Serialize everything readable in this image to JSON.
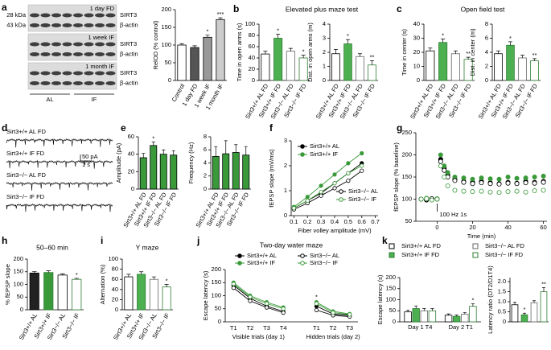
{
  "chart_data": [
    {
      "type": "blot",
      "panel": "a",
      "mw": [
        "28 kDa",
        "43 kDa"
      ],
      "bands": [
        "SIRT3",
        "β-actin"
      ],
      "periods": [
        "1 day FD",
        "1 week IF",
        "1 month IF"
      ],
      "groups": [
        "AL",
        "IF"
      ]
    },
    {
      "type": "bar",
      "ylabel": "RelOD (% control)",
      "categories": [
        "Control",
        "1 day FD",
        "1 week IF",
        "1 month IF"
      ],
      "values": [
        100,
        93,
        122,
        172
      ],
      "errors": [
        4,
        5,
        6,
        5
      ],
      "sig": [
        null,
        null,
        "*",
        "***"
      ],
      "colors": [
        "#ffffff",
        "#555555",
        "#999999",
        "#cccccc"
      ],
      "edge_colors": [
        "#000000",
        "#000000",
        "#000000",
        "#000000"
      ],
      "ylim": [
        0,
        200
      ],
      "yticks": [
        0,
        50,
        100,
        150,
        200
      ]
    },
    {
      "type": "bar",
      "panel": "b",
      "title": "Elevated plus maze test",
      "ylabel": "Time in open arms (s)",
      "categories": [
        "Sirt3+/+ AL FD",
        "Sirt3+/+ IF FD",
        "Sirt3−/− AL FD",
        "Sirt3−/− IF FD"
      ],
      "values": [
        47,
        75,
        52,
        40
      ],
      "errors": [
        5,
        7,
        5,
        5
      ],
      "sig": [
        null,
        "*",
        null,
        "*"
      ],
      "colors": [
        "#ffffff",
        "#4caf50",
        "#ffffff",
        "#ffffff"
      ],
      "edge_colors": [
        "#000000",
        "#2e7d32",
        "#666666",
        "#2e7d32"
      ],
      "ylim": [
        0,
        100
      ],
      "yticks": [
        0,
        20,
        40,
        60,
        80,
        100
      ]
    },
    {
      "type": "bar",
      "ylabel": "Dist. in open arms (m)",
      "categories": [
        "Sirt3+/+ AL FD",
        "Sirt3+/+ IF FD",
        "Sirt3−/− AL FD",
        "Sirt3−/− IF FD"
      ],
      "values": [
        1.9,
        2.6,
        1.7,
        1.1
      ],
      "errors": [
        0.3,
        0.3,
        0.2,
        0.3
      ],
      "sig": [
        null,
        "*",
        null,
        "**"
      ],
      "colors": [
        "#ffffff",
        "#4caf50",
        "#ffffff",
        "#ffffff"
      ],
      "edge_colors": [
        "#000000",
        "#2e7d32",
        "#666666",
        "#2e7d32"
      ],
      "ylim": [
        0,
        4
      ],
      "yticks": [
        0,
        1,
        2,
        3,
        4
      ]
    },
    {
      "type": "bar",
      "panel": "c",
      "title": "Open field test",
      "ylabel": "Time in center (s)",
      "categories": [
        "Sirt3+/+ AL FD",
        "Sirt3+/+ IF FD",
        "Sirt3−/− AL FD",
        "Sirt3−/− IF FD"
      ],
      "values": [
        21,
        27,
        19,
        15
      ],
      "errors": [
        2,
        2.5,
        2,
        1.5
      ],
      "sig": [
        null,
        "*",
        null,
        "**"
      ],
      "colors": [
        "#ffffff",
        "#4caf50",
        "#ffffff",
        "#ffffff"
      ],
      "edge_colors": [
        "#000000",
        "#2e7d32",
        "#666666",
        "#2e7d32"
      ],
      "ylim": [
        0,
        40
      ],
      "yticks": [
        0,
        10,
        20,
        30,
        40
      ]
    },
    {
      "type": "bar",
      "ylabel": "Dist. in center (m)",
      "categories": [
        "Sirt3+/+ AL FD",
        "Sirt3+/+ IF FD",
        "Sirt3−/− AL FD",
        "Sirt3−/− IF FD"
      ],
      "values": [
        3.8,
        5,
        3.2,
        2.8
      ],
      "errors": [
        0.4,
        0.5,
        0.4,
        0.3
      ],
      "sig": [
        null,
        "*",
        null,
        "**"
      ],
      "colors": [
        "#ffffff",
        "#4caf50",
        "#ffffff",
        "#ffffff"
      ],
      "edge_colors": [
        "#000000",
        "#2e7d32",
        "#666666",
        "#2e7d32"
      ],
      "ylim": [
        0,
        8
      ],
      "yticks": [
        0,
        2,
        4,
        6,
        8
      ]
    },
    {
      "type": "traces",
      "panel": "d",
      "labels": [
        "Sirt3+/+ AL FD",
        "Sirt3+/+ IF FD",
        "Sirt3−/− AL FD",
        "Sirt3−/− IF FD"
      ],
      "scale": [
        "50 pA",
        "1 s"
      ]
    },
    {
      "type": "bar",
      "panel": "e",
      "ylabel": "Amplitude (pA)",
      "categories": [
        "Sirt3+/+ AL FD",
        "Sirt3+/+ IF FD",
        "Sirt3−/− AL FD",
        "Sirt3−/− IF FD"
      ],
      "values": [
        36,
        50,
        40,
        39
      ],
      "errors": [
        5,
        4,
        5,
        5
      ],
      "sig": [
        null,
        "*",
        null,
        null
      ],
      "colors": [
        "#3a9a3a",
        "#3a9a3a",
        "#3a9a3a",
        "#3a9a3a"
      ],
      "edge_colors": [
        "#000000",
        "#000000",
        "#000000",
        "#000000"
      ],
      "ylim": [
        0,
        60
      ],
      "yticks": [
        0,
        20,
        40,
        60
      ]
    },
    {
      "type": "bar",
      "ylabel": "Frequency (Hz)",
      "categories": [
        "Sirt3+/+ AL FD",
        "Sirt3+/+ IF FD",
        "Sirt3−/− AL FD",
        "Sirt3−/− IF FD"
      ],
      "values": [
        5,
        5.4,
        5.6,
        5.2
      ],
      "errors": [
        1.5,
        2,
        1.2,
        1.3
      ],
      "sig": [
        null,
        null,
        null,
        null
      ],
      "colors": [
        "#3a9a3a",
        "#3a9a3a",
        "#3a9a3a",
        "#3a9a3a"
      ],
      "edge_colors": [
        "#000000",
        "#000000",
        "#000000",
        "#000000"
      ],
      "ylim": [
        0,
        8
      ],
      "yticks": [
        0,
        2,
        4,
        6,
        8
      ]
    },
    {
      "type": "line",
      "panel": "f",
      "ylabel": "fEPSP slope (mV/ms)",
      "xlabel": "Fiber volley amplitude (mV)",
      "x": [
        0.1,
        0.2,
        0.3,
        0.4,
        0.5,
        0.6
      ],
      "xlim": [
        0.08,
        0.72
      ],
      "xticks": [
        0.1,
        0.2,
        0.3,
        0.4,
        0.5,
        0.6,
        0.7
      ],
      "ylim": [
        0,
        3
      ],
      "yticks": [
        0,
        1,
        2,
        3
      ],
      "series": [
        {
          "name": "Sirt3+/+ AL",
          "color": "#000000",
          "marker_fill": "#000000",
          "values": [
            0.3,
            0.6,
            0.9,
            1.3,
            1.7,
            2.1
          ]
        },
        {
          "name": "Sirt3+/+ IF",
          "color": "#3a9a3a",
          "marker_fill": "#3a9a3a",
          "values": [
            0.35,
            0.75,
            1.2,
            1.65,
            2.1,
            2.5
          ]
        },
        {
          "name": "Sirt3−/− AL",
          "color": "#000000",
          "marker_fill": "#ffffff",
          "values": [
            0.25,
            0.5,
            0.8,
            1.1,
            1.4,
            1.8
          ]
        },
        {
          "name": "Sirt3−/− IF",
          "color": "#3a9a3a",
          "marker_fill": "#ffffff",
          "values": [
            0.3,
            0.6,
            0.95,
            1.3,
            1.7,
            2.0
          ]
        }
      ]
    },
    {
      "type": "scatter",
      "panel": "g",
      "ylabel": "fEPSP slope (% baseline)",
      "xlabel": "Time (min)",
      "stim_label": "100 Hz 1s",
      "x": [
        -9,
        -6,
        -3,
        0,
        2,
        4,
        6,
        10,
        15,
        20,
        25,
        30,
        35,
        40,
        45,
        50,
        55,
        60
      ],
      "xlim": [
        -12,
        62
      ],
      "xticks": [
        0,
        20,
        40,
        60
      ],
      "ylim": [
        50,
        250
      ],
      "yticks": [
        50,
        100,
        150,
        200,
        250
      ],
      "series": [
        {
          "name": "Sirt3+/+ AL",
          "color": "#000000",
          "marker_fill": "#000000",
          "values": [
            100,
            98,
            101,
            100,
            190,
            170,
            155,
            145,
            140,
            138,
            140,
            137,
            135,
            138,
            136,
            140,
            138,
            140
          ]
        },
        {
          "name": "Sirt3+/+ IF",
          "color": "#3a9a3a",
          "marker_fill": "#3a9a3a",
          "values": [
            100,
            102,
            99,
            101,
            200,
            175,
            160,
            150,
            148,
            145,
            148,
            146,
            145,
            150,
            147,
            148,
            150,
            152
          ]
        },
        {
          "name": "Sirt3−/− AL",
          "color": "#000000",
          "marker_fill": "#ffffff",
          "values": [
            100,
            99,
            101,
            100,
            185,
            165,
            150,
            142,
            138,
            135,
            137,
            135,
            134,
            136,
            135,
            137,
            136,
            138
          ]
        },
        {
          "name": "Sirt3−/− IF",
          "color": "#3a9a3a",
          "marker_fill": "#ffffff",
          "values": [
            100,
            101,
            98,
            100,
            175,
            150,
            130,
            120,
            118,
            117,
            118,
            116,
            115,
            117,
            118,
            116,
            119,
            120
          ]
        }
      ]
    },
    {
      "type": "bar",
      "panel": "h",
      "title": "50–60 min",
      "ylabel": "% fEPSP slope",
      "categories": [
        "Sirt3+/+ AL",
        "Sirt3+/+ IF",
        "Sirt3−/− AL",
        "Sirt3−/− IF"
      ],
      "values": [
        145,
        147,
        137,
        120
      ],
      "errors": [
        6,
        7,
        5,
        4
      ],
      "sig": [
        null,
        null,
        null,
        "*"
      ],
      "colors": [
        "#222222",
        "#3a9a3a",
        "#ffffff",
        "#ffffff"
      ],
      "edge_colors": [
        "#000000",
        "#2e7d32",
        "#000000",
        "#2e7d32"
      ],
      "ylim": [
        0,
        200
      ],
      "yticks": [
        0,
        50,
        100,
        150,
        200
      ]
    },
    {
      "type": "bar",
      "panel": "i",
      "title": "Y maze",
      "ylabel": "Alternation (%)",
      "categories": [
        "Sirt3+/+ AL",
        "Sirt3+/+ IF",
        "Sirt3−/− AL",
        "Sirt3−/− IF"
      ],
      "values": [
        65,
        70,
        60,
        45
      ],
      "errors": [
        5,
        5,
        5,
        5
      ],
      "sig": [
        null,
        null,
        null,
        "*"
      ],
      "colors": [
        "#ffffff",
        "#4caf50",
        "#ffffff",
        "#ffffff"
      ],
      "edge_colors": [
        "#000000",
        "#2e7d32",
        "#666666",
        "#2e7d32"
      ],
      "ylim": [
        0,
        100
      ],
      "yticks": [
        0,
        20,
        40,
        60,
        80,
        100
      ]
    },
    {
      "type": "line",
      "panel": "j",
      "title": "Two-day water maze",
      "ylabel": "Escape latency (s)",
      "group_labels": [
        "Visible trials (day 1)",
        "Hidden trials (day 2)"
      ],
      "categories": [
        "T1",
        "T2",
        "T3",
        "T4",
        null,
        "T1",
        "T2",
        "T3"
      ],
      "sig": [
        null,
        null,
        null,
        null,
        null,
        "*",
        null,
        null
      ],
      "ylim": [
        0,
        200
      ],
      "yticks": [
        0,
        50,
        100,
        150,
        200
      ],
      "series": [
        {
          "name": "Sirt3+/+ AL",
          "color": "#000000",
          "marker_fill": "#000000",
          "values": [
            140,
            90,
            60,
            40,
            null,
            60,
            30,
            25
          ]
        },
        {
          "name": "Sirt3+/+ IF",
          "color": "#3a9a3a",
          "marker_fill": "#3a9a3a",
          "values": [
            150,
            100,
            75,
            55,
            null,
            75,
            40,
            30
          ]
        },
        {
          "name": "Sirt3−/− AL",
          "color": "#000000",
          "marker_fill": "#ffffff",
          "values": [
            130,
            80,
            55,
            35,
            null,
            45,
            25,
            20
          ]
        },
        {
          "name": "Sirt3−/− IF",
          "color": "#3a9a3a",
          "marker_fill": "#ffffff",
          "values": [
            145,
            95,
            70,
            50,
            null,
            70,
            35,
            28
          ]
        }
      ]
    },
    {
      "type": "bar",
      "panel": "k",
      "ylabel": "Escape latency (s)",
      "categories": [
        "Day 1 T4",
        "Day 2 T1"
      ],
      "ylim": [
        0,
        200
      ],
      "yticks": [
        0,
        50,
        100,
        150,
        200
      ],
      "series": [
        {
          "name": "Sirt3+/+ AL FD",
          "color": "#ffffff",
          "edge_color": "#000000",
          "values": [
            45,
            30
          ],
          "errors": [
            8,
            6
          ]
        },
        {
          "name": "Sirt3+/+ IF FD",
          "color": "#4caf50",
          "edge_color": "#2e7d32",
          "values": [
            60,
            25
          ],
          "errors": [
            12,
            6
          ]
        },
        {
          "name": "Sirt3−/− AL FD",
          "color": "#ffffff",
          "edge_color": "#666666",
          "values": [
            50,
            35
          ],
          "errors": [
            10,
            7
          ]
        },
        {
          "name": "Sirt3−/− IF FD",
          "color": "#ffffff",
          "edge_color": "#2e7d32",
          "values": [
            50,
            70
          ],
          "errors": [
            10,
            12
          ],
          "sig": [
            null,
            "*"
          ]
        }
      ]
    },
    {
      "type": "bar",
      "ylabel": "Latency ratio (DT2/D1T4)",
      "categories": [
        null,
        null,
        null,
        null
      ],
      "values": [
        0.85,
        0.35,
        0.95,
        1.5
      ],
      "errors": [
        0.12,
        0.08,
        0.1,
        0.2
      ],
      "sig": [
        null,
        "*",
        null,
        "**"
      ],
      "colors": [
        "#ffffff",
        "#4caf50",
        "#ffffff",
        "#ffffff"
      ],
      "edge_colors": [
        "#000000",
        "#2e7d32",
        "#666666",
        "#2e7d32"
      ],
      "ylim": [
        0,
        2.2
      ],
      "yticks": [
        0,
        0.5,
        {
          "value": 1,
          "label": "1.0"
        },
        1.5,
        {
          "value": 2,
          "label": "2.0"
        }
      ]
    }
  ]
}
